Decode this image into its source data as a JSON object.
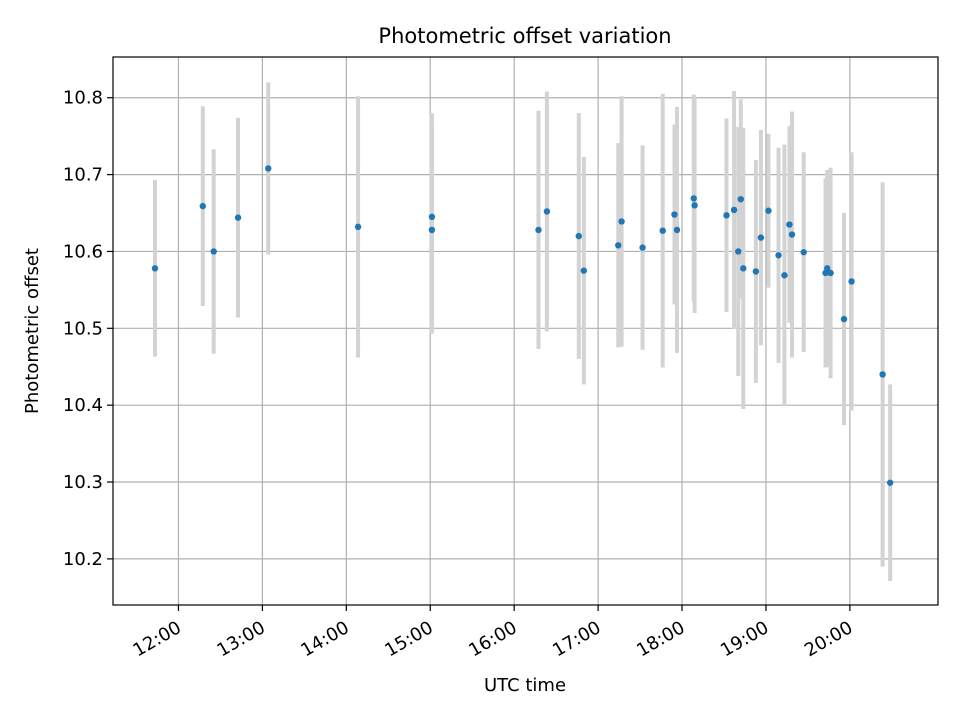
{
  "chart_data": {
    "type": "scatter",
    "title": "Photometric offset variation",
    "xlabel": "UTC time",
    "ylabel": "Photometric offset",
    "x_unit": "hours",
    "xlim": [
      11.22,
      21.05
    ],
    "ylim": [
      10.14,
      10.853
    ],
    "x_ticks": [
      {
        "value": 12,
        "label": "12:00"
      },
      {
        "value": 13,
        "label": "13:00"
      },
      {
        "value": 14,
        "label": "14:00"
      },
      {
        "value": 15,
        "label": "15:00"
      },
      {
        "value": 16,
        "label": "16:00"
      },
      {
        "value": 17,
        "label": "17:00"
      },
      {
        "value": 18,
        "label": "18:00"
      },
      {
        "value": 19,
        "label": "19:00"
      },
      {
        "value": 20,
        "label": "20:00"
      }
    ],
    "y_ticks": [
      {
        "value": 10.2,
        "label": "10.2"
      },
      {
        "value": 10.3,
        "label": "10.3"
      },
      {
        "value": 10.4,
        "label": "10.4"
      },
      {
        "value": 10.5,
        "label": "10.5"
      },
      {
        "value": 10.6,
        "label": "10.6"
      },
      {
        "value": 10.7,
        "label": "10.7"
      },
      {
        "value": 10.8,
        "label": "10.8"
      }
    ],
    "grid": true,
    "colors": {
      "marker": "#1f77b4",
      "errorbar": "#d3d3d3",
      "grid": "#b0b0b0"
    },
    "points": [
      {
        "x": 11.72,
        "y": 10.578,
        "err": 0.115
      },
      {
        "x": 12.29,
        "y": 10.659,
        "err": 0.13
      },
      {
        "x": 12.42,
        "y": 10.6,
        "err": 0.133
      },
      {
        "x": 12.71,
        "y": 10.644,
        "err": 0.13
      },
      {
        "x": 13.07,
        "y": 10.708,
        "err": 0.112
      },
      {
        "x": 14.14,
        "y": 10.632,
        "err": 0.17
      },
      {
        "x": 15.02,
        "y": 10.645,
        "err": 0.135
      },
      {
        "x": 15.02,
        "y": 10.628,
        "err": 0.135
      },
      {
        "x": 16.29,
        "y": 10.628,
        "err": 0.155
      },
      {
        "x": 16.39,
        "y": 10.652,
        "err": 0.156
      },
      {
        "x": 16.77,
        "y": 10.62,
        "err": 0.16
      },
      {
        "x": 16.83,
        "y": 10.575,
        "err": 0.148
      },
      {
        "x": 17.24,
        "y": 10.608,
        "err": 0.133
      },
      {
        "x": 17.28,
        "y": 10.639,
        "err": 0.163
      },
      {
        "x": 17.53,
        "y": 10.605,
        "err": 0.133
      },
      {
        "x": 17.77,
        "y": 10.627,
        "err": 0.178
      },
      {
        "x": 17.91,
        "y": 10.648,
        "err": 0.117
      },
      {
        "x": 17.94,
        "y": 10.628,
        "err": 0.16
      },
      {
        "x": 18.14,
        "y": 10.669,
        "err": 0.135
      },
      {
        "x": 18.15,
        "y": 10.66,
        "err": 0.14
      },
      {
        "x": 18.53,
        "y": 10.647,
        "err": 0.126
      },
      {
        "x": 18.62,
        "y": 10.654,
        "err": 0.155
      },
      {
        "x": 18.67,
        "y": 10.6,
        "err": 0.162
      },
      {
        "x": 18.7,
        "y": 10.668,
        "err": 0.13
      },
      {
        "x": 18.73,
        "y": 10.578,
        "err": 0.183
      },
      {
        "x": 18.88,
        "y": 10.574,
        "err": 0.145
      },
      {
        "x": 18.94,
        "y": 10.618,
        "err": 0.14
      },
      {
        "x": 19.03,
        "y": 10.653,
        "err": 0.1
      },
      {
        "x": 19.15,
        "y": 10.595,
        "err": 0.14
      },
      {
        "x": 19.22,
        "y": 10.569,
        "err": 0.17
      },
      {
        "x": 19.28,
        "y": 10.635,
        "err": 0.128
      },
      {
        "x": 19.31,
        "y": 10.622,
        "err": 0.16
      },
      {
        "x": 19.45,
        "y": 10.599,
        "err": 0.13
      },
      {
        "x": 19.71,
        "y": 10.572,
        "err": 0.123
      },
      {
        "x": 19.73,
        "y": 10.578,
        "err": 0.128
      },
      {
        "x": 19.77,
        "y": 10.572,
        "err": 0.137
      },
      {
        "x": 19.93,
        "y": 10.512,
        "err": 0.138
      },
      {
        "x": 20.02,
        "y": 10.561,
        "err": 0.168
      },
      {
        "x": 20.39,
        "y": 10.44,
        "err": 0.25
      },
      {
        "x": 20.48,
        "y": 10.299,
        "err": 0.128
      }
    ]
  }
}
